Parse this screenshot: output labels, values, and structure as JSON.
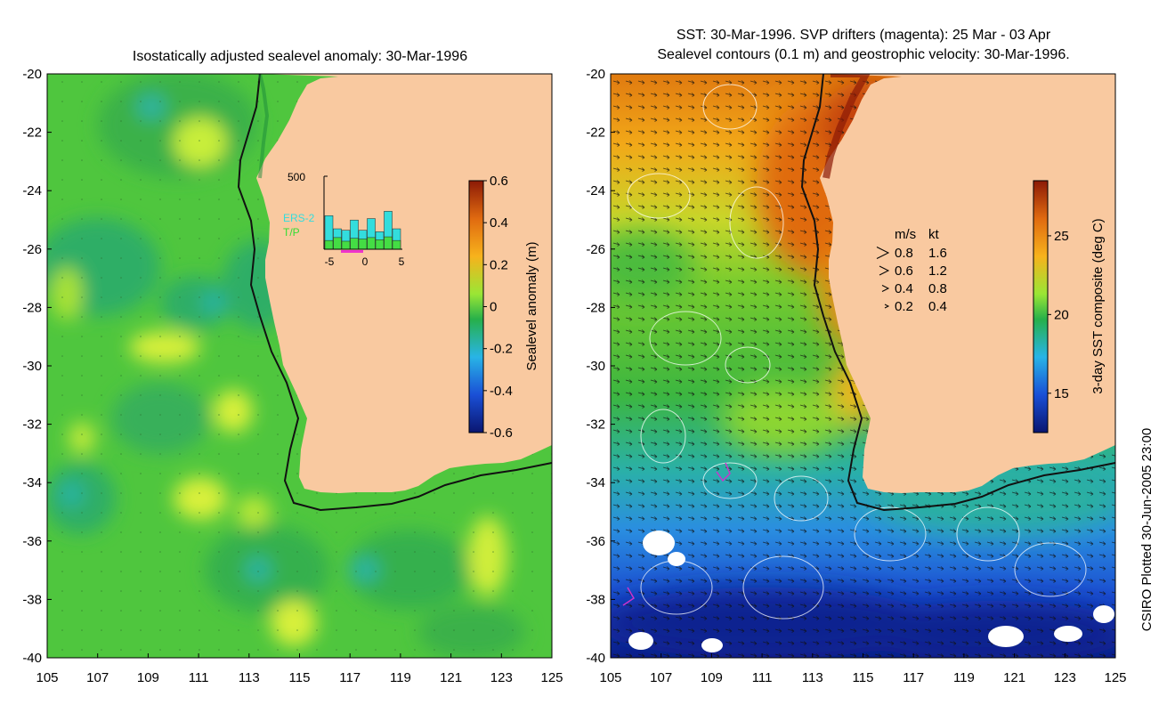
{
  "left_panel": {
    "title": "Isostatically adjusted sealevel anomaly: 30-Mar-1996",
    "colorbar": {
      "label": "Sealevel anomaly (m)",
      "ticks": [
        "0.6",
        "0.4",
        "0.2",
        "0",
        "-0.2",
        "-0.4",
        "-0.6"
      ],
      "range": [
        -0.6,
        0.6
      ],
      "colors": [
        "#0a1670",
        "#1a4fd6",
        "#28b4e6",
        "#27b04a",
        "#9ae635",
        "#f7b21c",
        "#e06a10",
        "#8c1a06"
      ]
    },
    "inset": {
      "ymax_label": "500",
      "legend": [
        {
          "label": "ERS-2",
          "color": "#33dddd"
        },
        {
          "label": "T/P",
          "color": "#44dd44"
        }
      ],
      "x_ticks": [
        "-5",
        "0",
        "5"
      ],
      "ers2_values": [
        230,
        140,
        130,
        200,
        130,
        210,
        120,
        260,
        140
      ],
      "tp_values": [
        60,
        80,
        55,
        75,
        70,
        80,
        65,
        85,
        60
      ]
    }
  },
  "right_panel": {
    "title_line1": "SST: 30-Mar-1996. SVP drifters (magenta): 25 Mar - 03 Apr",
    "title_line2": "Sealevel contours (0.1 m) and geostrophic velocity: 30-Mar-1996.",
    "colorbar": {
      "label": "3-day SST composite (deg C)",
      "ticks": [
        "25",
        "20",
        "15"
      ],
      "range": [
        12.5,
        28.5
      ],
      "colors": [
        "#0a1670",
        "#1a4fd6",
        "#28b4e6",
        "#27b04a",
        "#9ae635",
        "#f7b21c",
        "#e06a10",
        "#8c1a06"
      ]
    },
    "velocity_legend": {
      "header_ms": "m/s",
      "header_kt": "kt",
      "rows": [
        {
          "ms": "0.8",
          "kt": "1.6"
        },
        {
          "ms": "0.6",
          "kt": "1.2"
        },
        {
          "ms": "0.4",
          "kt": "0.8"
        },
        {
          "ms": "0.2",
          "kt": "0.4"
        }
      ]
    }
  },
  "axes": {
    "x_ticks": [
      "105",
      "107",
      "109",
      "111",
      "113",
      "115",
      "117",
      "119",
      "121",
      "123",
      "125"
    ],
    "y_ticks": [
      "-20",
      "-22",
      "-24",
      "-26",
      "-28",
      "-30",
      "-32",
      "-34",
      "-36",
      "-38",
      "-40"
    ],
    "lon_range": [
      105,
      125
    ],
    "lat_range": [
      -20,
      -40
    ]
  },
  "colors": {
    "land": "#f9c9a0",
    "shelf": "#1a1a1a"
  },
  "credit": "CSIRO Plotted 30-Jun-2005 23:00"
}
